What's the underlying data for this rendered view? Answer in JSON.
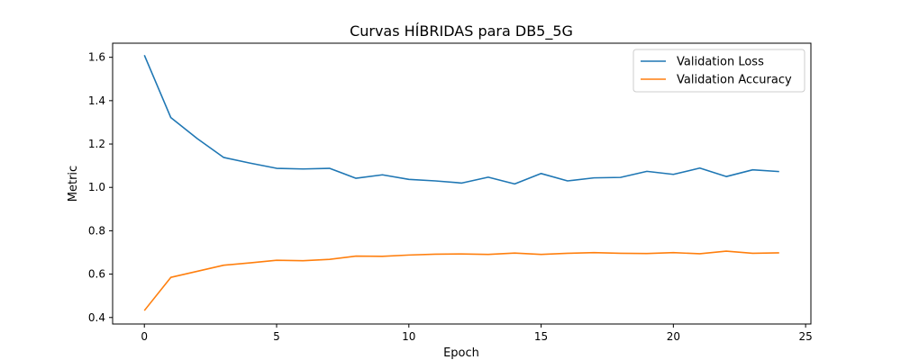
{
  "chart_data": {
    "type": "line",
    "title": "Curvas HÍBRIDAS para DB5_5G",
    "xlabel": "Epoch",
    "ylabel": "Metric",
    "xlim": [
      -1.2,
      25.2
    ],
    "ylim": [
      0.37,
      1.665
    ],
    "xticks": [
      0,
      5,
      10,
      15,
      20,
      25
    ],
    "yticks": [
      0.4,
      0.6,
      0.8,
      1.0,
      1.2,
      1.4,
      1.6
    ],
    "grid": false,
    "legend_position": "top-right",
    "x": [
      0,
      1,
      2,
      3,
      4,
      5,
      6,
      7,
      8,
      9,
      10,
      11,
      12,
      13,
      14,
      15,
      16,
      17,
      18,
      19,
      20,
      21,
      22,
      23,
      24
    ],
    "series": [
      {
        "name": "Validation Loss",
        "color": "#1f77b4",
        "values": [
          1.61,
          1.322,
          1.225,
          1.138,
          1.112,
          1.088,
          1.085,
          1.088,
          1.042,
          1.058,
          1.037,
          1.03,
          1.02,
          1.047,
          1.016,
          1.064,
          1.03,
          1.044,
          1.046,
          1.074,
          1.06,
          1.089,
          1.05,
          1.081,
          1.073
        ]
      },
      {
        "name": "Validation Accuracy",
        "color": "#ff7f0e",
        "values": [
          0.432,
          0.585,
          0.613,
          0.641,
          0.652,
          0.664,
          0.662,
          0.668,
          0.683,
          0.682,
          0.688,
          0.692,
          0.693,
          0.691,
          0.697,
          0.691,
          0.696,
          0.699,
          0.696,
          0.695,
          0.699,
          0.694,
          0.706,
          0.696,
          0.698
        ]
      }
    ]
  }
}
